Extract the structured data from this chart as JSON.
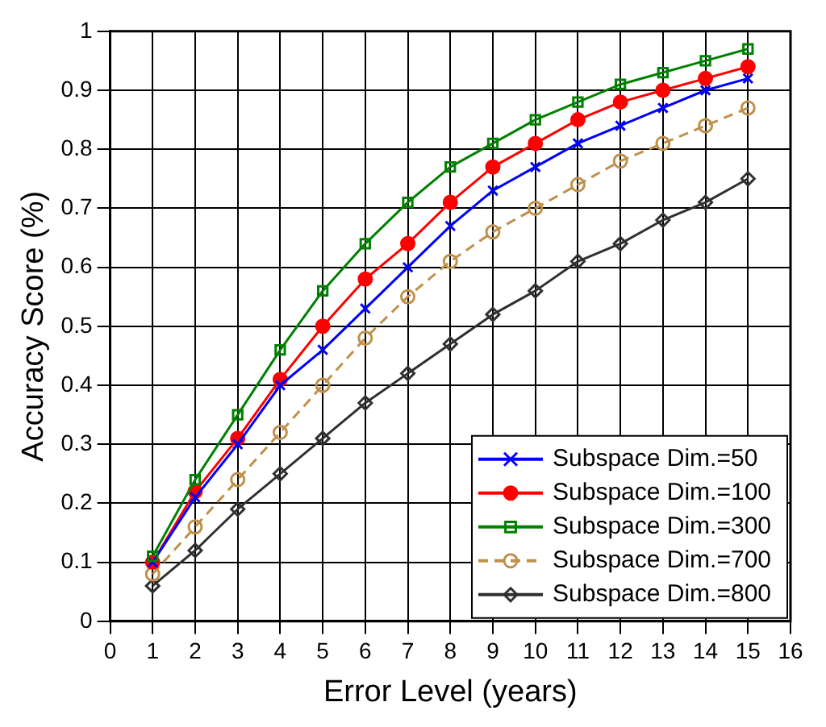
{
  "chart_data": {
    "type": "line",
    "xlabel": "Error Level (years)",
    "ylabel": "Accuracy Score (%)",
    "x": [
      1,
      2,
      3,
      4,
      5,
      6,
      7,
      8,
      9,
      10,
      11,
      12,
      13,
      14,
      15
    ],
    "xlim": [
      0,
      16
    ],
    "xticks": [
      0,
      1,
      2,
      3,
      4,
      5,
      6,
      7,
      8,
      9,
      10,
      11,
      12,
      13,
      14,
      15,
      16
    ],
    "ylim": [
      0,
      1
    ],
    "yticks": [
      0,
      0.1,
      0.2,
      0.3,
      0.4,
      0.5,
      0.6,
      0.7,
      0.8,
      0.9,
      1
    ],
    "grid": true,
    "legend": "bottom right",
    "series": [
      {
        "name": "Subspace Dim.=50",
        "color": "#0000ff",
        "marker": "cross",
        "line_style": "solid",
        "values": [
          0.1,
          0.21,
          0.3,
          0.4,
          0.46,
          0.53,
          0.6,
          0.67,
          0.73,
          0.77,
          0.81,
          0.84,
          0.87,
          0.9,
          0.92
        ]
      },
      {
        "name": "Subspace Dim.=100",
        "color": "#ff0000",
        "marker": "circle",
        "line_style": "solid",
        "values": [
          0.1,
          0.22,
          0.31,
          0.41,
          0.5,
          0.58,
          0.64,
          0.71,
          0.77,
          0.81,
          0.85,
          0.88,
          0.9,
          0.92,
          0.94
        ]
      },
      {
        "name": "Subspace Dim.=300",
        "color": "#008000",
        "marker": "square",
        "line_style": "solid",
        "values": [
          0.11,
          0.24,
          0.35,
          0.46,
          0.56,
          0.64,
          0.71,
          0.77,
          0.81,
          0.85,
          0.88,
          0.91,
          0.93,
          0.95,
          0.97
        ]
      },
      {
        "name": "Subspace Dim.=700",
        "color": "#c0904a",
        "marker": "circle",
        "line_style": "dashed",
        "values": [
          0.08,
          0.16,
          0.24,
          0.32,
          0.4,
          0.48,
          0.55,
          0.61,
          0.66,
          0.7,
          0.74,
          0.78,
          0.81,
          0.84,
          0.87
        ]
      },
      {
        "name": "Subspace Dim.=800",
        "color": "#303030",
        "marker": "diamond",
        "line_style": "solid",
        "values": [
          0.06,
          0.12,
          0.19,
          0.25,
          0.31,
          0.37,
          0.42,
          0.47,
          0.52,
          0.56,
          0.61,
          0.64,
          0.68,
          0.71,
          0.75
        ]
      }
    ]
  }
}
